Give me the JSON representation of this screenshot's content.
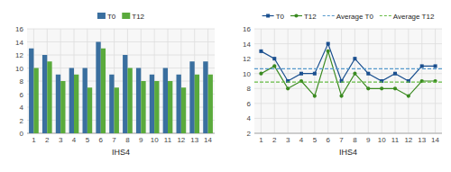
{
  "chart_data": [
    {
      "type": "bar",
      "x_label": "IHS4",
      "categories": [
        1,
        2,
        3,
        4,
        5,
        6,
        7,
        8,
        9,
        10,
        11,
        12,
        13,
        14
      ],
      "series": [
        {
          "name": "T0",
          "color": "#3a6f9f",
          "values": [
            13,
            12,
            9,
            10,
            10,
            14,
            9,
            12,
            10,
            9,
            10,
            9,
            11,
            11
          ]
        },
        {
          "name": "T12",
          "color": "#5aaa3c",
          "values": [
            10,
            11,
            8,
            9,
            7,
            13,
            7,
            10,
            8,
            8,
            8,
            7,
            9,
            9
          ]
        }
      ],
      "ylim": [
        0,
        16
      ],
      "yticks": [
        0,
        2,
        4,
        6,
        8,
        10,
        12,
        14,
        16
      ],
      "grid": true,
      "legend": "top"
    },
    {
      "type": "line",
      "x_label": "IHS4",
      "categories": [
        1,
        2,
        3,
        4,
        5,
        6,
        7,
        8,
        9,
        10,
        11,
        12,
        13,
        14
      ],
      "series": [
        {
          "name": "T0",
          "color": "#1a4f8f",
          "marker": "square",
          "values": [
            13,
            12,
            9,
            10,
            10,
            14,
            9,
            12,
            10,
            9,
            10,
            9,
            11,
            11
          ]
        },
        {
          "name": "T12",
          "color": "#3a8a20",
          "marker": "circle",
          "values": [
            10,
            11,
            8,
            9,
            7,
            13,
            7,
            10,
            8,
            8,
            8,
            7,
            9,
            9
          ]
        },
        {
          "name": "Average T0",
          "type": "hline",
          "color": "#5599cc",
          "line_style": "dashed",
          "value": 10.642857142857142
        },
        {
          "name": "Average T12",
          "type": "hline",
          "color": "#66bb44",
          "line_style": "dashed",
          "value": 8.857142857142858
        }
      ],
      "ylim": [
        2,
        16
      ],
      "yticks": [
        2,
        4,
        6,
        8,
        10,
        12,
        14,
        16
      ],
      "grid": true,
      "legend": "top"
    }
  ]
}
